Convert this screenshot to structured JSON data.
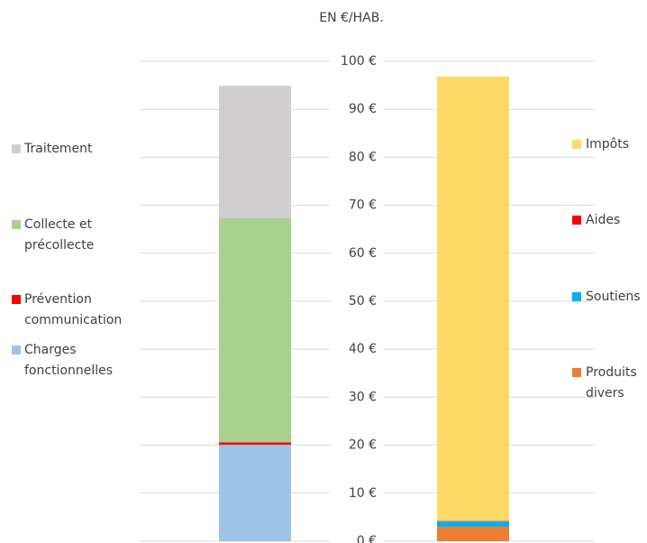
{
  "chart_data": {
    "type": "stacked_bar",
    "title": "EN €/HAB.",
    "categories": [
      null,
      null
    ],
    "series": [
      {
        "name": "Charges fonctionnelles",
        "color": "#9dc3e6",
        "values": [
          20.1,
          null
        ]
      },
      {
        "name": "Prévention communication",
        "color": "#ff0000",
        "values": [
          0.5,
          null
        ]
      },
      {
        "name": "Collecte et précollecte",
        "color": "#a9d18e",
        "values": [
          46.7,
          null
        ]
      },
      {
        "name": "Traitement",
        "color": "#d0cece",
        "values": [
          27.6,
          null
        ]
      },
      {
        "name": "Produits divers",
        "color": "#ed7d31",
        "values": [
          null,
          3.0
        ]
      },
      {
        "name": "Soutiens",
        "color": "#00b0f0",
        "values": [
          null,
          1.1
        ]
      },
      {
        "name": "Aides",
        "color": "#ff0000",
        "values": [
          null,
          0.1
        ]
      },
      {
        "name": "Impôts",
        "color": "#ffd966",
        "values": [
          null,
          92.6
        ]
      }
    ],
    "ylim": [
      0,
      100
    ],
    "yticks": [
      {
        "value": 0,
        "label": "0 €"
      },
      {
        "value": 10,
        "label": "10 €"
      },
      {
        "value": 20,
        "label": "20 €"
      },
      {
        "value": 30,
        "label": "30 €"
      },
      {
        "value": 40,
        "label": "40 €"
      },
      {
        "value": 50,
        "label": "50 €"
      },
      {
        "value": 60,
        "label": "60 €"
      },
      {
        "value": 70,
        "label": "70 €"
      },
      {
        "value": 80,
        "label": "80 €"
      },
      {
        "value": 90,
        "label": "90 €"
      },
      {
        "value": 100,
        "label": "100 €"
      }
    ],
    "grid": true
  }
}
